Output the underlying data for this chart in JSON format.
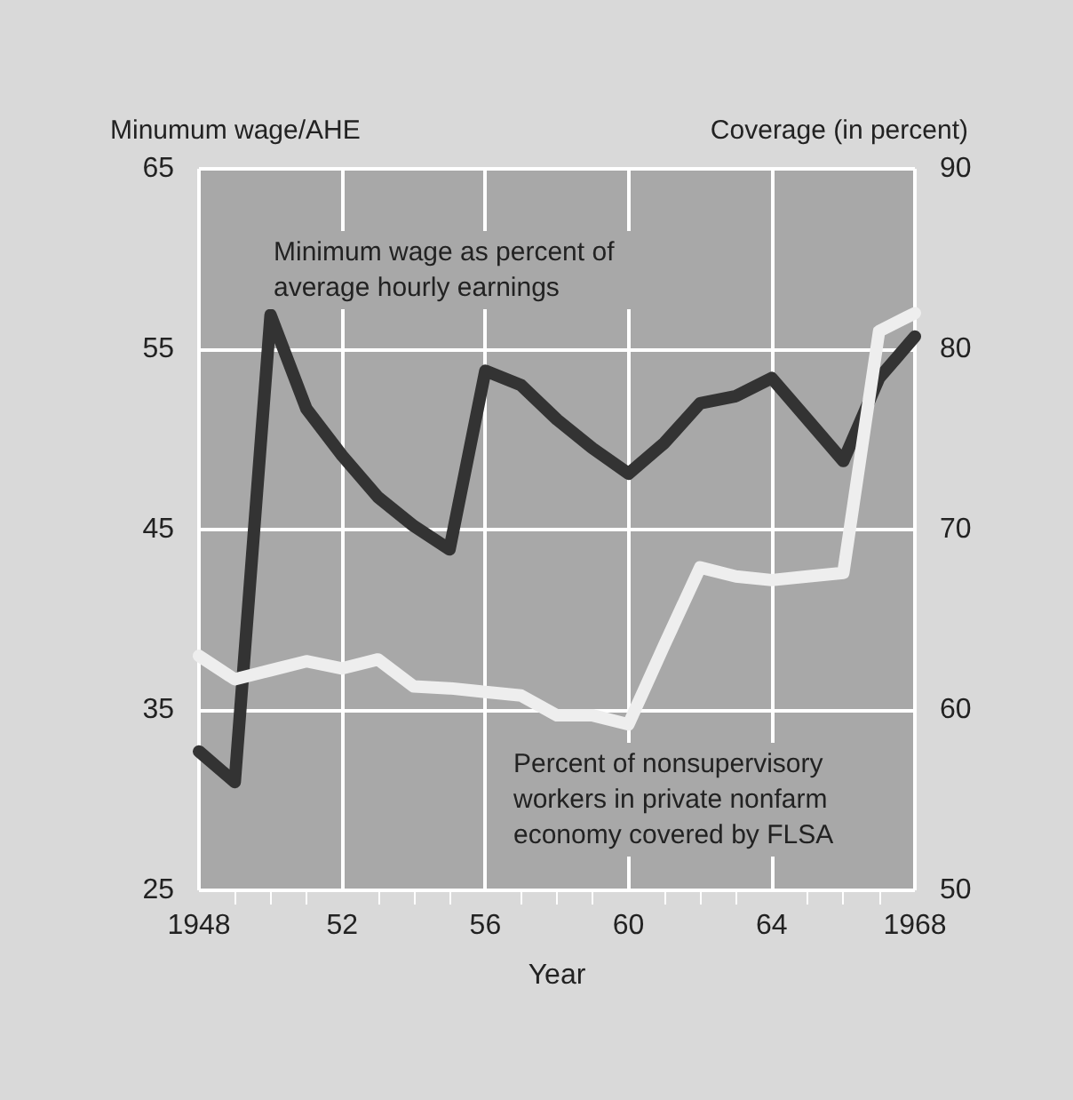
{
  "chart_data": {
    "type": "line",
    "xlabel": "Year",
    "ylabel": "Minumum wage/AHE",
    "y2label": "Coverage (in percent)",
    "x": [
      1948,
      1949,
      1950,
      1951,
      1952,
      1953,
      1954,
      1955,
      1956,
      1957,
      1958,
      1959,
      1960,
      1961,
      1962,
      1963,
      1964,
      1965,
      1966,
      1967,
      1968
    ],
    "series": [
      {
        "color": "#333333",
        "values": [
          32.7,
          31.0,
          56.9,
          51.7,
          49.1,
          46.8,
          45.2,
          43.9,
          53.8,
          53.0,
          51.1,
          49.5,
          48.1,
          49.8,
          52.0,
          52.4,
          53.4,
          51.1,
          48.8,
          53.4,
          55.7
        ]
      },
      {
        "color": "#eeeeee",
        "axis": "y2",
        "values": [
          63.0,
          61.7,
          62.2,
          62.7,
          62.3,
          62.8,
          61.3,
          61.2,
          61.0,
          60.8,
          59.7,
          59.7,
          59.2,
          63.6,
          67.9,
          67.4,
          67.2,
          67.4,
          67.6,
          81.0,
          82.0
        ]
      }
    ],
    "xlim": [
      1948,
      1968
    ],
    "xticks": [
      {
        "value": 1948,
        "label": "1948"
      },
      {
        "value": 1952,
        "label": "52"
      },
      {
        "value": 1956,
        "label": "56"
      },
      {
        "value": 1960,
        "label": "60"
      },
      {
        "value": 1964,
        "label": "64"
      },
      {
        "value": 1968,
        "label": "1968"
      }
    ],
    "ylim": [
      25,
      65
    ],
    "yticks": [
      25,
      35,
      45,
      55,
      65
    ],
    "y2lim": [
      50,
      90
    ],
    "y2ticks": [
      50,
      60,
      70,
      80,
      90
    ],
    "annotations": [
      "Minimum wage as percent of average hourly earnings",
      "Percent of nonsupervisory workers in private nonfarm economy covered by FLSA"
    ],
    "grid": true,
    "marker": "none",
    "line_style": "solid"
  }
}
